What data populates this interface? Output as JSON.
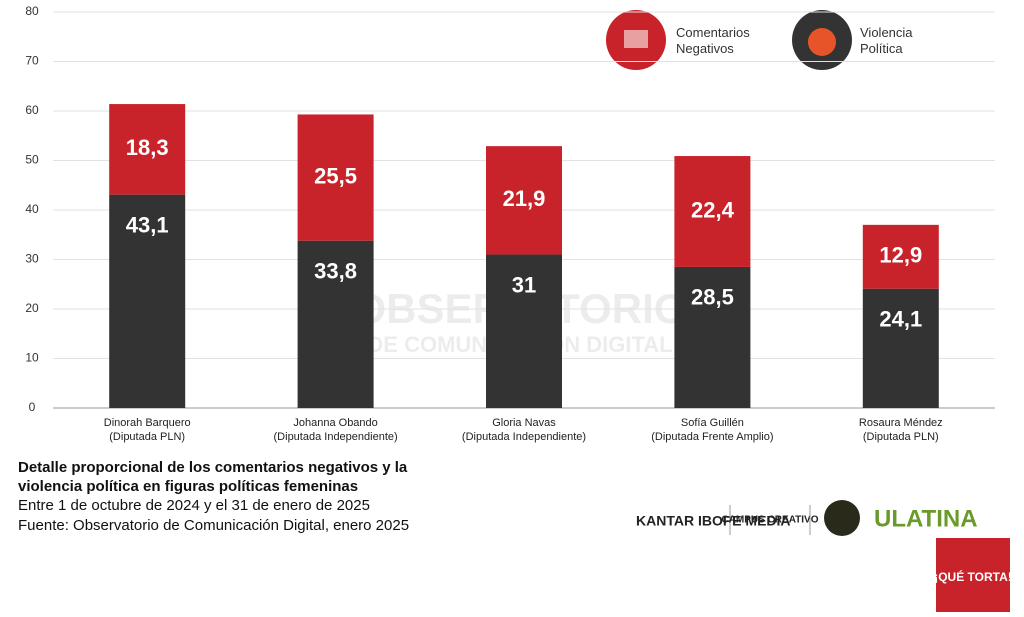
{
  "chart_data": {
    "type": "stacked_bar",
    "title": "Detalle proporcional de los comentarios negativos y la violencia política en figuras políticas femeninas",
    "subtitle": "Entre 1 de octubre de 2024 y el 31 de enero de 2025",
    "source": "Fuente: Observatorio de Comunicación Digital, enero 2025",
    "categories": [
      "Dinorah Barquero",
      "Johanna Obando",
      "Gloria Navas",
      "Sofía Guillén",
      "Rosaura Méndez"
    ],
    "category_roles": [
      "(Diputada PLN)",
      "(Diputada Independiente)",
      "(Diputada Independiente)",
      "(Diputada Frente Amplio)",
      "(Diputada PLN)"
    ],
    "series": [
      {
        "name": "Violencia Política",
        "color": "#333333",
        "values": [
          43.1,
          33.8,
          31,
          28.5,
          24.1
        ],
        "value_labels": [
          "43,1",
          "33,8",
          "31",
          "28,5",
          "24,1"
        ]
      },
      {
        "name": "Comentarios Negativos",
        "color": "#c8222a",
        "values": [
          18.3,
          25.5,
          21.9,
          22.4,
          12.9
        ],
        "value_labels": [
          "18,3",
          "25,5",
          "21,9",
          "22,4",
          "12,9"
        ]
      }
    ],
    "ylim": [
      0,
      80
    ],
    "yticks": [
      0,
      10,
      20,
      30,
      40,
      50,
      60,
      70,
      80
    ],
    "grid": true
  },
  "watermark": [
    "OBSERVATORIO",
    "DE COMUNICACIÓN DIGITAL"
  ],
  "logos": [
    "KANTAR IBOPE MEDIA",
    "CAMPUS CREATIVO",
    "ULATINA",
    "¡QUÉ TORTA!"
  ]
}
